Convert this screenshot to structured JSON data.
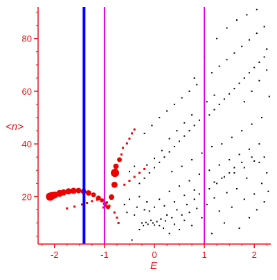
{
  "chart_data": {
    "type": "scatter",
    "xlabel": "E",
    "ylabel": "<n>",
    "xlim": [
      -2.33,
      2.33
    ],
    "ylim": [
      2,
      92
    ],
    "x_ticks": [
      "-2",
      "-1",
      "0",
      "1",
      "2"
    ],
    "y_ticks": [
      "20",
      "40",
      "60",
      "80"
    ],
    "grid": false,
    "colors": {
      "axis": "#ee1111",
      "black_points": "#000000",
      "red_points": "#ee0000",
      "blue_line": "#0000ff",
      "magenta_line": "#dd00dd"
    },
    "vlines": [
      {
        "x": -1.41,
        "color": "#0000ff"
      },
      {
        "x": -1.0,
        "color": "#dd00dd"
      },
      {
        "x": 1.0,
        "color": "#dd00dd"
      }
    ],
    "red_large_points": [
      [
        -2.09,
        20.0
      ],
      [
        -2.05,
        20.3
      ],
      [
        -2.0,
        20.6
      ],
      [
        -1.9,
        21.2
      ],
      [
        -1.82,
        21.6
      ],
      [
        -1.72,
        22.0
      ],
      [
        -1.62,
        22.2
      ],
      [
        -1.52,
        22.3
      ],
      [
        -1.42,
        22.0
      ],
      [
        -1.32,
        21.4
      ],
      [
        -1.22,
        20.7
      ],
      [
        -1.12,
        19.5
      ],
      [
        -1.05,
        18.6
      ],
      [
        -0.99,
        17.3
      ],
      [
        -0.93,
        16.0
      ],
      [
        -0.86,
        19.8
      ],
      [
        -0.8,
        24.5
      ],
      [
        -0.79,
        29.0
      ],
      [
        -0.77,
        31.5
      ],
      [
        -0.7,
        34.0
      ]
    ],
    "red_small_points": [
      [
        -1.75,
        15.5
      ],
      [
        -1.6,
        16.2
      ],
      [
        -1.45,
        17.0
      ],
      [
        -1.35,
        17.6
      ],
      [
        -1.25,
        18.3
      ],
      [
        -1.15,
        18.8
      ],
      [
        -1.05,
        18.6
      ],
      [
        -0.95,
        17.8
      ],
      [
        -0.9,
        16.5
      ],
      [
        -0.8,
        14.0
      ],
      [
        -0.75,
        12.0
      ],
      [
        -0.72,
        10.0
      ],
      [
        -0.66,
        36.0
      ],
      [
        -0.63,
        38.5
      ],
      [
        -0.55,
        40.2
      ],
      [
        -0.5,
        42.0
      ],
      [
        -0.45,
        44.0
      ],
      [
        -0.4,
        45.5
      ],
      [
        -0.6,
        24.5
      ],
      [
        -0.5,
        26.0
      ],
      [
        -0.4,
        27.5
      ],
      [
        -0.3,
        29.0
      ],
      [
        -0.2,
        30.5
      ],
      [
        -0.98,
        16.4
      ],
      [
        -1.02,
        15.9
      ]
    ],
    "black_points": [
      [
        -0.45,
        3.5
      ],
      [
        -0.3,
        7.5
      ],
      [
        -0.25,
        10.0
      ],
      [
        -0.22,
        9.0
      ],
      [
        -0.17,
        10.2
      ],
      [
        -0.13,
        9.5
      ],
      [
        -0.07,
        11.0
      ],
      [
        -0.03,
        10.0
      ],
      [
        0.0,
        9.2
      ],
      [
        0.05,
        10.5
      ],
      [
        0.1,
        9.0
      ],
      [
        0.13,
        11.5
      ],
      [
        0.18,
        8.0
      ],
      [
        0.22,
        10.8
      ],
      [
        0.25,
        13.0
      ],
      [
        0.3,
        6.0
      ],
      [
        0.35,
        12.0
      ],
      [
        0.4,
        9.5
      ],
      [
        0.45,
        15.0
      ],
      [
        0.5,
        7.5
      ],
      [
        0.55,
        13.0
      ],
      [
        0.6,
        11.0
      ],
      [
        0.65,
        17.0
      ],
      [
        0.7,
        14.0
      ],
      [
        0.75,
        9.0
      ],
      [
        0.8,
        19.0
      ],
      [
        0.85,
        15.5
      ],
      [
        0.9,
        21.0
      ],
      [
        0.95,
        12.0
      ],
      [
        1.05,
        17.0
      ],
      [
        1.1,
        23.0
      ],
      [
        1.15,
        6.0
      ],
      [
        1.2,
        19.5
      ],
      [
        1.25,
        25.0
      ],
      [
        1.3,
        14.5
      ],
      [
        1.35,
        27.0
      ],
      [
        1.4,
        10.0
      ],
      [
        1.45,
        21.5
      ],
      [
        1.5,
        29.0
      ],
      [
        1.55,
        16.0
      ],
      [
        1.6,
        31.0
      ],
      [
        1.65,
        23.0
      ],
      [
        1.7,
        8.0
      ],
      [
        1.75,
        33.0
      ],
      [
        1.8,
        19.0
      ],
      [
        1.85,
        27.0
      ],
      [
        1.9,
        12.0
      ],
      [
        1.95,
        35.0
      ],
      [
        2.0,
        21.0
      ],
      [
        2.05,
        15.0
      ],
      [
        2.1,
        33.0
      ],
      [
        2.15,
        25.0
      ],
      [
        2.2,
        18.0
      ],
      [
        2.25,
        29.0
      ],
      [
        2.28,
        22.0
      ],
      [
        -0.6,
        17.0
      ],
      [
        -0.55,
        14.0
      ],
      [
        -0.5,
        19.0
      ],
      [
        -0.4,
        13.0
      ],
      [
        -0.35,
        16.0
      ],
      [
        -0.3,
        20.0
      ],
      [
        -0.2,
        15.0
      ],
      [
        -0.15,
        18.0
      ],
      [
        -0.1,
        14.5
      ],
      [
        0.0,
        16.0
      ],
      [
        0.1,
        19.0
      ],
      [
        0.2,
        16.5
      ],
      [
        0.3,
        22.0
      ],
      [
        0.4,
        18.0
      ],
      [
        0.5,
        24.0
      ],
      [
        0.6,
        20.5
      ],
      [
        0.7,
        26.0
      ],
      [
        0.8,
        22.5
      ],
      [
        0.9,
        28.5
      ],
      [
        1.1,
        30.0
      ],
      [
        1.2,
        25.5
      ],
      [
        1.3,
        32.0
      ],
      [
        1.4,
        27.5
      ],
      [
        1.5,
        34.0
      ],
      [
        1.6,
        29.0
      ],
      [
        1.7,
        36.0
      ],
      [
        1.8,
        31.0
      ],
      [
        1.9,
        38.0
      ],
      [
        2.0,
        33.5
      ],
      [
        2.1,
        40.0
      ],
      [
        2.2,
        35.0
      ],
      [
        -0.3,
        25.0
      ],
      [
        -0.2,
        27.0
      ],
      [
        -0.1,
        29.0
      ],
      [
        0.0,
        31.0
      ],
      [
        0.1,
        33.0
      ],
      [
        0.2,
        35.0
      ],
      [
        0.3,
        37.0
      ],
      [
        0.4,
        39.0
      ],
      [
        0.5,
        41.0
      ],
      [
        0.6,
        43.0
      ],
      [
        0.7,
        45.0
      ],
      [
        0.8,
        47.0
      ],
      [
        0.9,
        49.0
      ],
      [
        1.1,
        51.0
      ],
      [
        1.2,
        53.0
      ],
      [
        1.3,
        55.0
      ],
      [
        1.4,
        57.0
      ],
      [
        1.5,
        59.0
      ],
      [
        1.6,
        61.0
      ],
      [
        1.7,
        63.0
      ],
      [
        1.8,
        65.0
      ],
      [
        1.9,
        67.0
      ],
      [
        2.0,
        69.0
      ],
      [
        2.1,
        71.0
      ],
      [
        2.2,
        73.0
      ],
      [
        -0.2,
        44.0
      ],
      [
        -0.05,
        47.0
      ],
      [
        0.1,
        50.0
      ],
      [
        0.25,
        52.5
      ],
      [
        0.4,
        55.0
      ],
      [
        0.55,
        57.5
      ],
      [
        0.7,
        60.0
      ],
      [
        0.85,
        62.5
      ],
      [
        1.15,
        67.0
      ],
      [
        1.3,
        69.5
      ],
      [
        1.45,
        72.0
      ],
      [
        1.6,
        74.5
      ],
      [
        1.75,
        77.0
      ],
      [
        1.9,
        79.5
      ],
      [
        2.05,
        82.0
      ],
      [
        2.2,
        84.5
      ],
      [
        1.35,
        40.0
      ],
      [
        1.55,
        42.5
      ],
      [
        1.75,
        45.0
      ],
      [
        1.95,
        47.5
      ],
      [
        2.15,
        50.0
      ],
      [
        0.8,
        65.0
      ],
      [
        1.0,
        73.0
      ],
      [
        1.25,
        80.0
      ],
      [
        1.45,
        84.0
      ],
      [
        1.65,
        87.0
      ],
      [
        1.85,
        89.0
      ],
      [
        2.05,
        91.0
      ],
      [
        2.25,
        76.0
      ],
      [
        2.3,
        58.0
      ],
      [
        0.3,
        42.0
      ],
      [
        0.45,
        45.0
      ],
      [
        0.6,
        48.0
      ],
      [
        0.75,
        51.0
      ],
      [
        1.05,
        56.0
      ],
      [
        1.2,
        58.5
      ],
      [
        0.15,
        37.5
      ],
      [
        0.0,
        34.5
      ],
      [
        -0.15,
        32.0
      ],
      [
        0.35,
        29.5
      ],
      [
        0.55,
        31.5
      ],
      [
        0.75,
        34.0
      ],
      [
        0.95,
        36.5
      ],
      [
        1.15,
        39.0
      ],
      [
        1.8,
        56.0
      ],
      [
        1.95,
        60.0
      ],
      [
        2.1,
        64.0
      ],
      [
        2.25,
        68.0
      ],
      [
        -0.5,
        29.5
      ],
      [
        -0.4,
        31.5
      ]
    ]
  }
}
